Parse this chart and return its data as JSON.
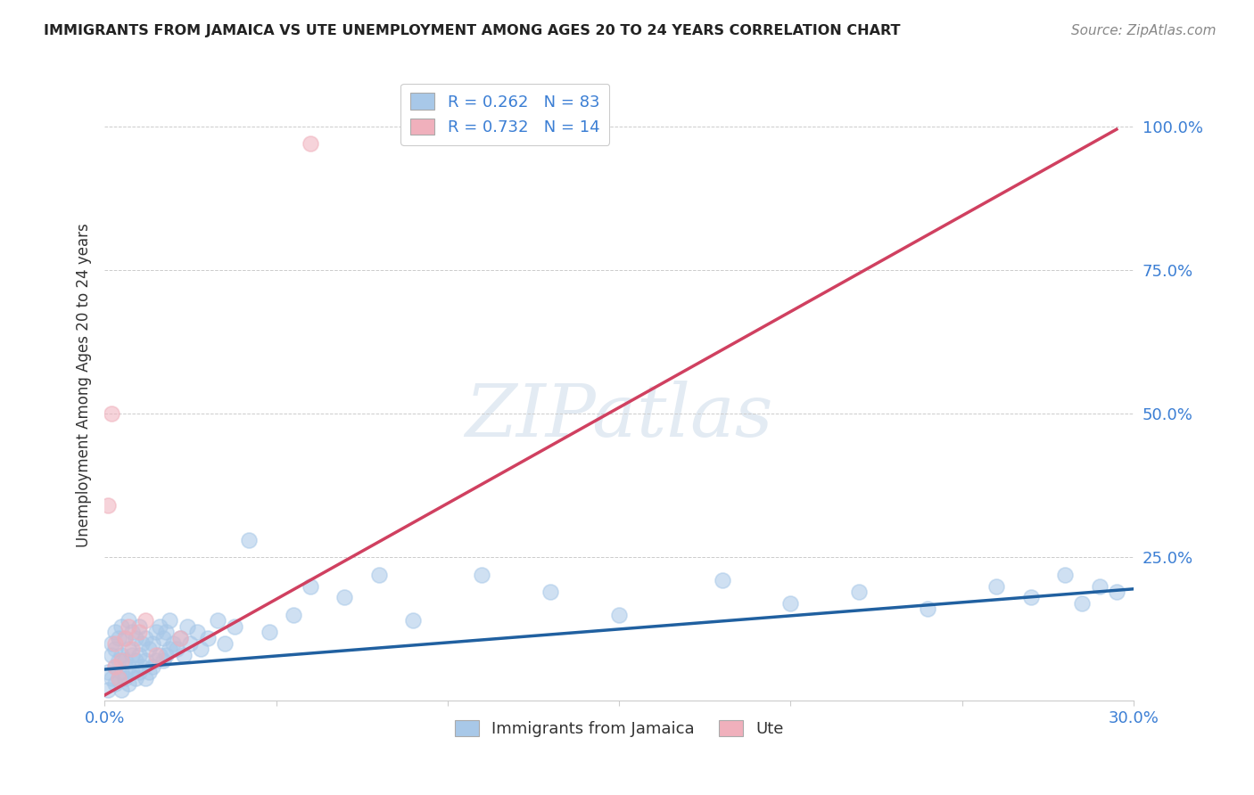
{
  "title": "IMMIGRANTS FROM JAMAICA VS UTE UNEMPLOYMENT AMONG AGES 20 TO 24 YEARS CORRELATION CHART",
  "source": "Source: ZipAtlas.com",
  "ylabel": "Unemployment Among Ages 20 to 24 years",
  "xlim": [
    0.0,
    0.3
  ],
  "ylim": [
    0.0,
    1.1
  ],
  "yticks": [
    0.0,
    0.25,
    0.5,
    0.75,
    1.0
  ],
  "ytick_labels": [
    "",
    "25.0%",
    "50.0%",
    "75.0%",
    "100.0%"
  ],
  "xticks": [
    0.0,
    0.05,
    0.1,
    0.15,
    0.2,
    0.25,
    0.3
  ],
  "xtick_labels": [
    "0.0%",
    "",
    "",
    "",
    "",
    "",
    "30.0%"
  ],
  "blue_color": "#A8C8E8",
  "pink_color": "#F0B0BC",
  "blue_line_color": "#2060A0",
  "pink_line_color": "#D04060",
  "legend_text_color": "#3B7ED4",
  "legend_blue_label": "R = 0.262   N = 83",
  "legend_pink_label": "R = 0.732   N = 14",
  "watermark": "ZIPatlas",
  "bottom_legend_blue": "Immigrants from Jamaica",
  "bottom_legend_pink": "Ute",
  "blue_scatter_x": [
    0.001,
    0.001,
    0.002,
    0.002,
    0.002,
    0.003,
    0.003,
    0.003,
    0.003,
    0.004,
    0.004,
    0.004,
    0.005,
    0.005,
    0.005,
    0.005,
    0.006,
    0.006,
    0.006,
    0.007,
    0.007,
    0.007,
    0.007,
    0.008,
    0.008,
    0.008,
    0.009,
    0.009,
    0.009,
    0.01,
    0.01,
    0.01,
    0.011,
    0.011,
    0.012,
    0.012,
    0.012,
    0.013,
    0.013,
    0.014,
    0.014,
    0.015,
    0.015,
    0.016,
    0.016,
    0.017,
    0.017,
    0.018,
    0.018,
    0.019,
    0.019,
    0.02,
    0.021,
    0.022,
    0.023,
    0.024,
    0.025,
    0.027,
    0.028,
    0.03,
    0.033,
    0.035,
    0.038,
    0.042,
    0.048,
    0.055,
    0.06,
    0.07,
    0.08,
    0.09,
    0.11,
    0.13,
    0.15,
    0.18,
    0.2,
    0.22,
    0.24,
    0.26,
    0.27,
    0.28,
    0.285,
    0.29,
    0.295
  ],
  "blue_scatter_y": [
    0.05,
    0.02,
    0.08,
    0.04,
    0.1,
    0.03,
    0.06,
    0.09,
    0.12,
    0.04,
    0.07,
    0.11,
    0.02,
    0.05,
    0.08,
    0.13,
    0.04,
    0.07,
    0.11,
    0.03,
    0.06,
    0.09,
    0.14,
    0.05,
    0.08,
    0.12,
    0.04,
    0.07,
    0.11,
    0.05,
    0.08,
    0.13,
    0.06,
    0.1,
    0.04,
    0.07,
    0.11,
    0.05,
    0.09,
    0.06,
    0.1,
    0.07,
    0.12,
    0.08,
    0.13,
    0.07,
    0.11,
    0.08,
    0.12,
    0.09,
    0.14,
    0.1,
    0.09,
    0.11,
    0.08,
    0.13,
    0.1,
    0.12,
    0.09,
    0.11,
    0.14,
    0.1,
    0.13,
    0.28,
    0.12,
    0.15,
    0.2,
    0.18,
    0.22,
    0.14,
    0.22,
    0.19,
    0.15,
    0.21,
    0.17,
    0.19,
    0.16,
    0.2,
    0.18,
    0.22,
    0.17,
    0.2,
    0.19
  ],
  "pink_scatter_x": [
    0.001,
    0.002,
    0.003,
    0.003,
    0.004,
    0.005,
    0.006,
    0.007,
    0.008,
    0.01,
    0.012,
    0.015,
    0.022,
    0.06
  ],
  "pink_scatter_y": [
    0.34,
    0.5,
    0.06,
    0.1,
    0.04,
    0.07,
    0.11,
    0.13,
    0.09,
    0.12,
    0.14,
    0.08,
    0.11,
    0.97
  ],
  "blue_trend_x": [
    0.0,
    0.3
  ],
  "blue_trend_y": [
    0.055,
    0.195
  ],
  "pink_trend_x": [
    0.0,
    0.295
  ],
  "pink_trend_y": [
    0.01,
    0.995
  ]
}
